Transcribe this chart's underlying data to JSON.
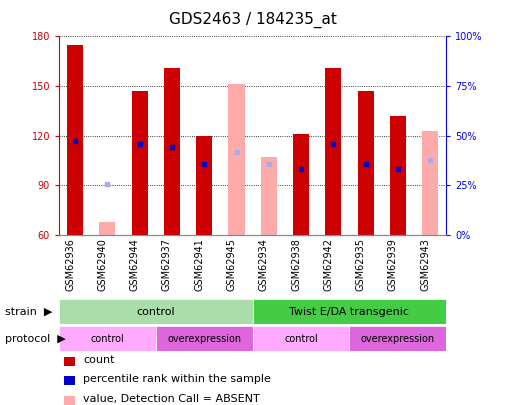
{
  "title": "GDS2463 / 184235_at",
  "samples": [
    "GSM62936",
    "GSM62940",
    "GSM62944",
    "GSM62937",
    "GSM62941",
    "GSM62945",
    "GSM62934",
    "GSM62938",
    "GSM62942",
    "GSM62935",
    "GSM62939",
    "GSM62943"
  ],
  "count_values": [
    175,
    null,
    147,
    161,
    120,
    null,
    null,
    121,
    161,
    147,
    132,
    null
  ],
  "count_pink_values": [
    null,
    68,
    null,
    null,
    null,
    151,
    107,
    null,
    null,
    null,
    null,
    123
  ],
  "percentile_values": [
    117,
    null,
    115,
    113,
    103,
    null,
    null,
    100,
    115,
    103,
    100,
    null
  ],
  "percentile_absent_values": [
    null,
    91,
    null,
    null,
    null,
    110,
    103,
    null,
    null,
    null,
    null,
    105
  ],
  "ylim_left": [
    60,
    180
  ],
  "ylim_right": [
    0,
    100
  ],
  "yticks_left": [
    60,
    90,
    120,
    150,
    180
  ],
  "yticks_right": [
    0,
    25,
    50,
    75,
    100
  ],
  "ytick_labels_right": [
    "0%",
    "25%",
    "50%",
    "75%",
    "100%"
  ],
  "strain_groups": [
    {
      "label": "control",
      "start": 0,
      "end": 6,
      "color": "#aaddaa"
    },
    {
      "label": "Twist E/DA transgenic",
      "start": 6,
      "end": 12,
      "color": "#44cc44"
    }
  ],
  "protocol_groups": [
    {
      "label": "control",
      "start": 0,
      "end": 3,
      "color": "#ffaaff"
    },
    {
      "label": "overexpression",
      "start": 3,
      "end": 6,
      "color": "#dd66dd"
    },
    {
      "label": "control",
      "start": 6,
      "end": 9,
      "color": "#ffaaff"
    },
    {
      "label": "overexpression",
      "start": 9,
      "end": 12,
      "color": "#dd66dd"
    }
  ],
  "bar_width": 0.5,
  "bar_color_red": "#cc0000",
  "bar_color_pink": "#ffaaaa",
  "dot_color_blue": "#0000cc",
  "dot_color_lightblue": "#aaaaee",
  "bg_color": "#ffffff",
  "left_axis_color": "#cc0000",
  "right_axis_color": "#0000ff",
  "title_fontsize": 11,
  "tick_fontsize": 7,
  "legend_fontsize": 8,
  "axis_label_fontsize": 8,
  "band_label_fontsize": 8,
  "xtick_gray": "#cccccc"
}
